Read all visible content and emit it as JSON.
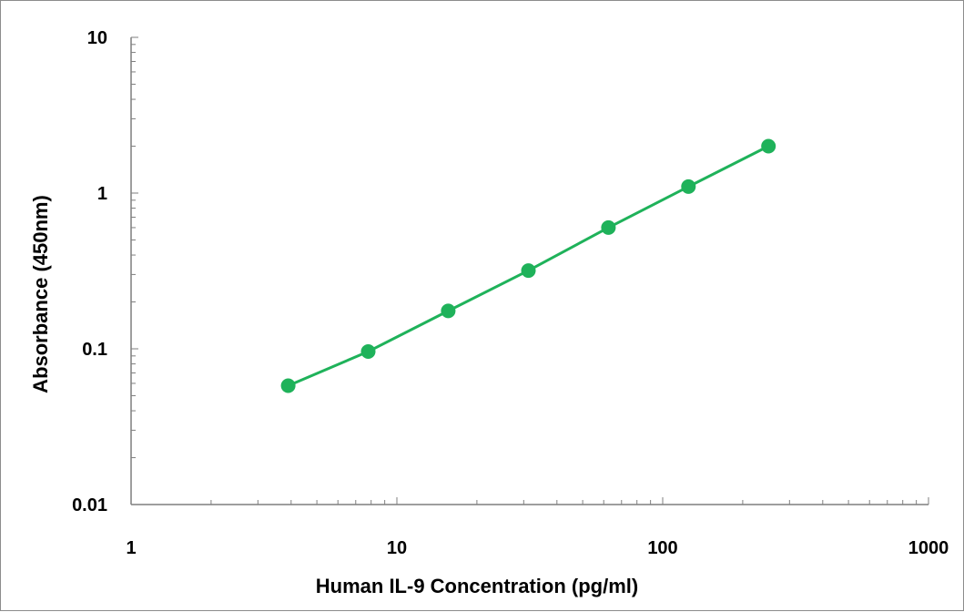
{
  "chart_data": {
    "type": "scatter",
    "title": "",
    "xlabel": "Human IL-9 Concentration (pg/ml)",
    "ylabel": "Absorbance (450nm)",
    "x_scale": "log",
    "y_scale": "log",
    "xlim": [
      1,
      1000
    ],
    "ylim": [
      0.01,
      10
    ],
    "x_tick_labels": [
      "1",
      "10",
      "100",
      "1000"
    ],
    "y_tick_labels": [
      "0.01",
      "0.1",
      "1",
      "10"
    ],
    "x_tick_values": [
      1,
      10,
      100,
      1000
    ],
    "y_tick_values": [
      0.01,
      0.1,
      1,
      10
    ],
    "grid": false,
    "legend": "none",
    "series": [
      {
        "x": [
          3.9,
          7.8,
          15.6,
          31.25,
          62.5,
          125,
          250
        ],
        "y": [
          0.058,
          0.096,
          0.175,
          0.318,
          0.6,
          1.1,
          2.0
        ],
        "color": "#1fb25a",
        "fit_line": true
      }
    ]
  }
}
